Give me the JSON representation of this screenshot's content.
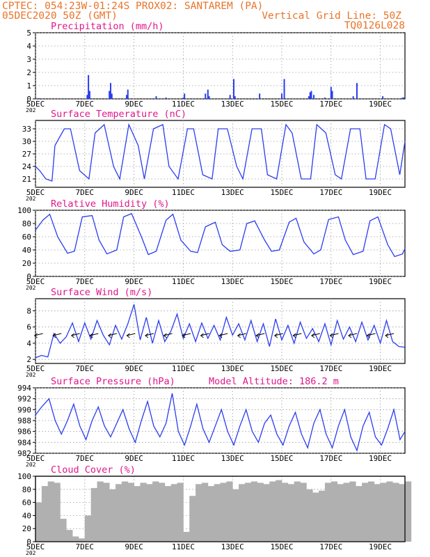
{
  "header": {
    "line1": "CPTEC:  054:23W-01:24S  PROX02: SANTAREM (PA)",
    "line2_left": "05DEC2020 50Z (GMT)",
    "line2_right": "Vertical Grid Line: 50Z",
    "line3_right": "TQ0126L028"
  },
  "colors": {
    "header": "#e8742a",
    "title": "#e0178a",
    "series": "#2a3cf0",
    "fill": "#b0b0b0",
    "frame": "#000000",
    "grid": "#9a9a9a"
  },
  "x_axis": {
    "ticks": [
      "5DEC",
      "7DEC",
      "9DEC",
      "11DEC",
      "13DEC",
      "15DEC",
      "17DEC",
      "19DEC"
    ],
    "tick_days": [
      0,
      2,
      4,
      6,
      8,
      10,
      12,
      14
    ],
    "span_days": [
      0,
      15
    ],
    "year_label": "202"
  },
  "chart_data": [
    {
      "type": "bar",
      "title": "Precipitation (mm/h)",
      "ylim": [
        0,
        5
      ],
      "yticks": [
        "0",
        "1",
        "2",
        "3",
        "4",
        "5"
      ],
      "grid": true,
      "series": [
        {
          "x": [
            0.15,
            2.1,
            2.15,
            2.2,
            3.0,
            3.05,
            3.1,
            3.7,
            3.75,
            4.9,
            5.3,
            6.0,
            6.05,
            6.9,
            7.0,
            7.05,
            7.9,
            8.05,
            8.1,
            9.1,
            10.0,
            10.1,
            11.1,
            11.15,
            11.2,
            11.3,
            11.75,
            12.0,
            12.05,
            12.9,
            13.05,
            14.1,
            14.9,
            14.95
          ],
          "values": [
            0.05,
            0.3,
            1.8,
            0.6,
            0.6,
            1.2,
            0.4,
            0.3,
            0.7,
            0.2,
            0.1,
            0.1,
            0.4,
            0.4,
            0.7,
            0.2,
            0.3,
            1.5,
            0.2,
            0.4,
            0.4,
            1.5,
            0.2,
            0.5,
            0.6,
            0.3,
            0.1,
            0.9,
            0.6,
            0.2,
            1.2,
            0.2,
            0.1,
            0.1
          ]
        }
      ]
    },
    {
      "type": "line",
      "title": "Surface Temperature (nC)",
      "ylim": [
        19,
        35
      ],
      "yticks": [
        "21",
        "24",
        "27",
        "30",
        "33"
      ],
      "grid": true,
      "series": [
        {
          "name": "",
          "x": [
            0,
            0.17,
            0.42,
            0.67,
            0.79,
            1.17,
            1.42,
            1.79,
            2.17,
            2.42,
            2.79,
            3.17,
            3.42,
            3.79,
            4.17,
            4.42,
            4.79,
            5.17,
            5.42,
            5.79,
            6.17,
            6.42,
            6.79,
            7.17,
            7.42,
            7.79,
            8.17,
            8.42,
            8.79,
            9.17,
            9.42,
            9.79,
            10.17,
            10.42,
            10.79,
            11.17,
            11.42,
            11.79,
            12.17,
            12.42,
            12.79,
            13.17,
            13.42,
            13.79,
            14.17,
            14.42,
            14.79,
            15.0
          ],
          "values": [
            24,
            23,
            21,
            20.5,
            29,
            33,
            33,
            23,
            21,
            32,
            34,
            24,
            21,
            34,
            29,
            21,
            33,
            34,
            24,
            21,
            33,
            33,
            22,
            21,
            33,
            33,
            24,
            21,
            33,
            33,
            22,
            21,
            34,
            32,
            21,
            21,
            34,
            32,
            22,
            21,
            33,
            33,
            21,
            21,
            34,
            33,
            22,
            30
          ]
        }
      ]
    },
    {
      "type": "line",
      "title": "Relative Humidity (%)",
      "ylim": [
        0,
        100
      ],
      "yticks": [
        "0",
        "20",
        "40",
        "60",
        "80",
        "100"
      ],
      "grid": true,
      "series": [
        {
          "name": "",
          "x": [
            0,
            0.3,
            0.58,
            0.9,
            1.3,
            1.58,
            1.9,
            2.3,
            2.58,
            2.9,
            3.3,
            3.58,
            3.9,
            4.3,
            4.58,
            4.9,
            5.3,
            5.58,
            5.9,
            6.3,
            6.58,
            6.9,
            7.3,
            7.58,
            7.9,
            8.3,
            8.58,
            8.9,
            9.3,
            9.58,
            9.9,
            10.3,
            10.58,
            10.9,
            11.3,
            11.58,
            11.9,
            12.3,
            12.58,
            12.9,
            13.3,
            13.58,
            13.9,
            14.3,
            14.58,
            14.9,
            15.0
          ],
          "values": [
            70,
            85,
            94,
            60,
            35,
            38,
            90,
            92,
            55,
            34,
            40,
            90,
            95,
            60,
            33,
            38,
            85,
            94,
            55,
            38,
            36,
            75,
            82,
            48,
            38,
            40,
            80,
            84,
            55,
            38,
            40,
            82,
            88,
            52,
            34,
            40,
            86,
            90,
            55,
            33,
            38,
            84,
            90,
            48,
            30,
            34,
            42
          ]
        }
      ]
    },
    {
      "type": "line",
      "title": "Surface Wind (m/s)",
      "ylim": [
        1.5,
        9.5
      ],
      "yticks": [
        "2",
        "4",
        "6",
        "8"
      ],
      "grid": true,
      "arrows": "wind-direction",
      "series": [
        {
          "name": "",
          "x": [
            0,
            0.25,
            0.5,
            0.75,
            1.0,
            1.25,
            1.5,
            1.75,
            2.0,
            2.25,
            2.5,
            2.75,
            3.0,
            3.25,
            3.5,
            3.75,
            4.0,
            4.25,
            4.5,
            4.75,
            5.0,
            5.25,
            5.5,
            5.75,
            6.0,
            6.25,
            6.5,
            6.75,
            7.0,
            7.25,
            7.5,
            7.75,
            8.0,
            8.25,
            8.5,
            8.75,
            9.0,
            9.25,
            9.5,
            9.75,
            10.0,
            10.25,
            10.5,
            10.75,
            11.0,
            11.25,
            11.5,
            11.75,
            12.0,
            12.25,
            12.5,
            12.75,
            13.0,
            13.25,
            13.5,
            13.75,
            14.0,
            14.25,
            14.5,
            14.75,
            15.0
          ],
          "values": [
            2.2,
            2.5,
            2.3,
            5.2,
            4.0,
            4.8,
            6.5,
            4.2,
            6.5,
            4.5,
            6.8,
            5.0,
            3.8,
            6.2,
            4.5,
            6.4,
            8.8,
            4.4,
            7.2,
            4.0,
            6.8,
            4.2,
            5.5,
            7.6,
            4.6,
            6.4,
            4.2,
            6.5,
            4.6,
            6.2,
            4.4,
            7.2,
            5.0,
            6.4,
            4.4,
            6.8,
            4.2,
            6.4,
            3.6,
            7.0,
            4.4,
            6.2,
            4.0,
            6.6,
            4.6,
            5.8,
            4.2,
            6.4,
            3.8,
            6.8,
            4.5,
            6.0,
            4.2,
            6.6,
            4.4,
            6.2,
            4.0,
            6.8,
            4.2,
            3.6,
            3.5
          ]
        }
      ]
    },
    {
      "type": "line",
      "title": "Surface Pressure (hPa)",
      "annotation": "Model Altitude: 186.2 m",
      "ylim": [
        982,
        994
      ],
      "yticks": [
        "982",
        "984",
        "986",
        "988",
        "990",
        "992",
        "994"
      ],
      "grid": true,
      "series": [
        {
          "name": "",
          "x": [
            0,
            0.25,
            0.55,
            0.8,
            1.05,
            1.3,
            1.55,
            1.8,
            2.05,
            2.3,
            2.55,
            2.8,
            3.05,
            3.3,
            3.55,
            3.8,
            4.05,
            4.3,
            4.55,
            4.8,
            5.05,
            5.3,
            5.55,
            5.8,
            6.05,
            6.3,
            6.55,
            6.8,
            7.05,
            7.3,
            7.55,
            7.8,
            8.05,
            8.3,
            8.55,
            8.8,
            9.05,
            9.3,
            9.55,
            9.8,
            10.05,
            10.3,
            10.55,
            10.8,
            11.05,
            11.3,
            11.55,
            11.8,
            12.05,
            12.3,
            12.55,
            12.8,
            13.05,
            13.3,
            13.55,
            13.8,
            14.05,
            14.3,
            14.55,
            14.8,
            15.0
          ],
          "values": [
            989,
            990.5,
            992,
            988,
            985.5,
            988,
            991,
            987,
            984.5,
            988,
            990.5,
            987,
            985,
            987.5,
            990,
            986.5,
            984,
            988,
            991.5,
            987,
            985,
            987.5,
            993,
            986,
            983.5,
            987,
            991,
            986.5,
            984,
            987,
            990,
            986,
            983.5,
            987,
            990,
            986,
            984,
            987.5,
            989,
            985.5,
            983.5,
            987,
            989.5,
            985.5,
            983,
            987.5,
            990,
            985.5,
            983,
            987,
            990,
            985,
            982.5,
            987,
            989.5,
            985,
            983.5,
            986.5,
            990,
            984.5,
            986
          ]
        }
      ]
    },
    {
      "type": "area",
      "title": "Cloud Cover (%)",
      "ylim": [
        0,
        100
      ],
      "yticks": [
        "0",
        "20",
        "40",
        "60",
        "80",
        "100"
      ],
      "grid": true,
      "series": [
        {
          "name": "",
          "x": [
            0,
            0.25,
            0.5,
            0.75,
            1.0,
            1.25,
            1.5,
            1.75,
            2.0,
            2.25,
            2.5,
            2.75,
            3.0,
            3.25,
            3.5,
            3.75,
            4.0,
            4.25,
            4.5,
            4.75,
            5.0,
            5.25,
            5.5,
            5.75,
            6.0,
            6.25,
            6.5,
            6.75,
            7.0,
            7.25,
            7.5,
            7.75,
            8.0,
            8.25,
            8.5,
            8.75,
            9.0,
            9.25,
            9.5,
            9.75,
            10.0,
            10.25,
            10.5,
            10.75,
            11.0,
            11.25,
            11.5,
            11.75,
            12.0,
            12.25,
            12.5,
            12.75,
            13.0,
            13.25,
            13.5,
            13.75,
            14.0,
            14.25,
            14.5,
            14.75,
            15.0
          ],
          "values": [
            60,
            85,
            92,
            90,
            35,
            18,
            8,
            5,
            40,
            82,
            92,
            90,
            80,
            88,
            92,
            90,
            85,
            90,
            88,
            92,
            90,
            85,
            88,
            90,
            15,
            70,
            88,
            90,
            85,
            88,
            90,
            92,
            80,
            88,
            90,
            92,
            90,
            88,
            92,
            94,
            90,
            88,
            92,
            90,
            80,
            75,
            78,
            90,
            92,
            88,
            90,
            92,
            85,
            90,
            92,
            88,
            90,
            92,
            90,
            88,
            92
          ]
        }
      ]
    }
  ]
}
